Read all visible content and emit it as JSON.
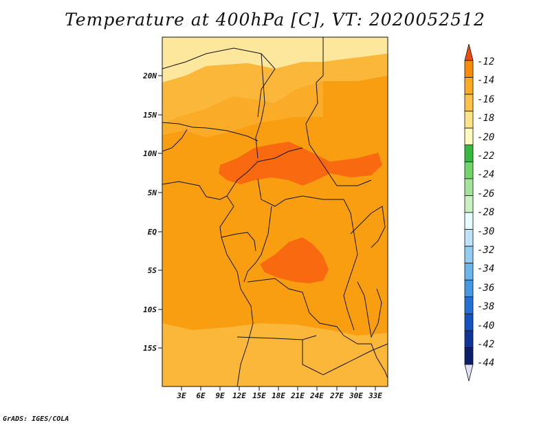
{
  "title": "Temperature at 400hPa [C], VT: 2020052512",
  "footer": "GrADS: IGES/COLA",
  "map": {
    "lat_labels": [
      "20N",
      "15N",
      "10N",
      "5N",
      "EQ",
      "5S",
      "10S",
      "15S"
    ],
    "lon_labels": [
      "3E",
      "6E",
      "9E",
      "12E",
      "15E",
      "18E",
      "21E",
      "24E",
      "27E",
      "30E",
      "33E"
    ]
  },
  "colorbar": {
    "labels": [
      "-12",
      "-14",
      "-16",
      "-18",
      "-20",
      "-22",
      "-24",
      "-26",
      "-28",
      "-30",
      "-32",
      "-34",
      "-36",
      "-38",
      "-40",
      "-42",
      "-44"
    ],
    "colors": [
      "#f04b0d",
      "#f88c0a",
      "#fbaa21",
      "#fbc24a",
      "#fde48a",
      "#fef9bd",
      "#37b940",
      "#70d56a",
      "#a4e39a",
      "#c9f0c1",
      "#e6fbfd",
      "#bfe3f8",
      "#95cdf2",
      "#6bb5ea",
      "#4598e3",
      "#2370d6",
      "#1652c0",
      "#0f3697",
      "#0d1f6b",
      "#e0e1f5"
    ]
  },
  "colors": {
    "deep": "#f96a10",
    "main": "#f99e10",
    "light": "#fbb73a",
    "pale": "#fcd66b",
    "paler": "#fde79c",
    "border": "#111111"
  }
}
